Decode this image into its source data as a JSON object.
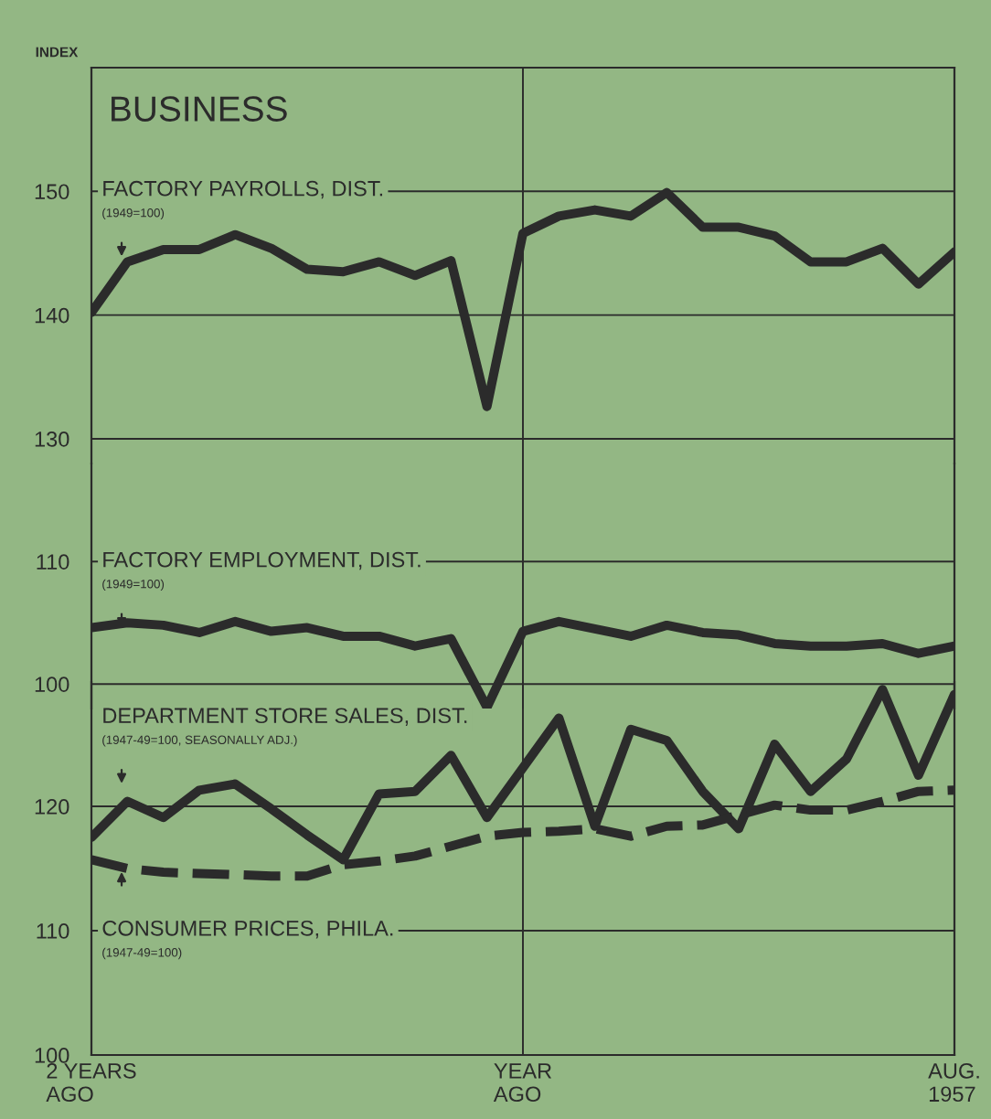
{
  "chart_data": [
    {
      "type": "line",
      "title": "BUSINESS",
      "ylabel": "INDEX",
      "categories": [
        null,
        null,
        null,
        null,
        null,
        null,
        null,
        null,
        null,
        null,
        null,
        null,
        null,
        null,
        null,
        null,
        null,
        null,
        null,
        null,
        null,
        null,
        null,
        null,
        null
      ],
      "series": [
        {
          "name": "FACTORY PAYROLLS, DIST.",
          "color": "#2b2b2b",
          "values": [
            140.2,
            144.3,
            145.3,
            145.3,
            146.5,
            145.4,
            143.7,
            143.5,
            144.3,
            143.2,
            144.4,
            132.6,
            146.6,
            148.0,
            148.5,
            148.0,
            149.9,
            147.1,
            147.1,
            146.4,
            144.3,
            144.3,
            145.4,
            142.5,
            145.1
          ]
        }
      ],
      "annotations": [
        "(1949=100)"
      ],
      "ylim": [
        128,
        160
      ],
      "yticks": [
        130,
        140,
        150
      ],
      "grid": true
    },
    {
      "type": "line",
      "categories": [
        null,
        null,
        null,
        null,
        null,
        null,
        null,
        null,
        null,
        null,
        null,
        null,
        null,
        null,
        null,
        null,
        null,
        null,
        null,
        null,
        null,
        null,
        null,
        null,
        null
      ],
      "series": [
        {
          "name": "FACTORY EMPLOYMENT, DIST.",
          "color": "#2b2b2b",
          "values": [
            104.6,
            105.0,
            104.8,
            104.2,
            105.1,
            104.3,
            104.6,
            103.9,
            103.9,
            103.1,
            103.7,
            98.1,
            104.3,
            105.1,
            104.5,
            103.9,
            104.8,
            104.2,
            104.0,
            103.3,
            103.1,
            103.1,
            103.3,
            102.5,
            103.1
          ]
        }
      ],
      "annotations": [
        "(1949=100)"
      ],
      "ylim": [
        98,
        118
      ],
      "yticks": [
        100,
        110
      ],
      "grid": true
    },
    {
      "type": "line",
      "categories": [
        "2 YEARS\nAGO",
        null,
        null,
        null,
        null,
        null,
        null,
        null,
        null,
        null,
        null,
        null,
        "YEAR\nAGO",
        null,
        null,
        null,
        null,
        null,
        null,
        null,
        null,
        null,
        null,
        null,
        "AUG.\n1957"
      ],
      "series": [
        {
          "name": "DEPARTMENT STORE SALES, DIST.",
          "color": "#2b2b2b",
          "values": [
            117.5,
            120.4,
            119.1,
            121.3,
            121.8,
            119.8,
            117.7,
            115.7,
            121.0,
            121.2,
            124.1,
            119.1,
            123.1,
            127.1,
            118.4,
            126.2,
            125.3,
            121.2,
            118.2,
            125.0,
            121.2,
            123.8,
            129.4,
            122.5,
            129.0
          ]
        },
        {
          "name": "CONSUMER PRICES, PHILA.",
          "color": "#2b2b2b",
          "line_style": "dashed",
          "values": [
            115.7,
            115.0,
            114.7,
            114.6,
            114.5,
            114.4,
            114.4,
            115.3,
            115.6,
            116.0,
            116.8,
            117.6,
            117.9,
            118.0,
            118.2,
            117.6,
            118.4,
            118.5,
            119.3,
            120.1,
            119.7,
            119.7,
            120.4,
            121.2,
            121.3
          ]
        }
      ],
      "annotations": [
        "(1947-49=100, SEASONALLY ADJ.)",
        "(1947-49=100)"
      ],
      "ylim": [
        100,
        130
      ],
      "yticks": [
        100,
        110,
        120
      ],
      "grid": true
    }
  ]
}
